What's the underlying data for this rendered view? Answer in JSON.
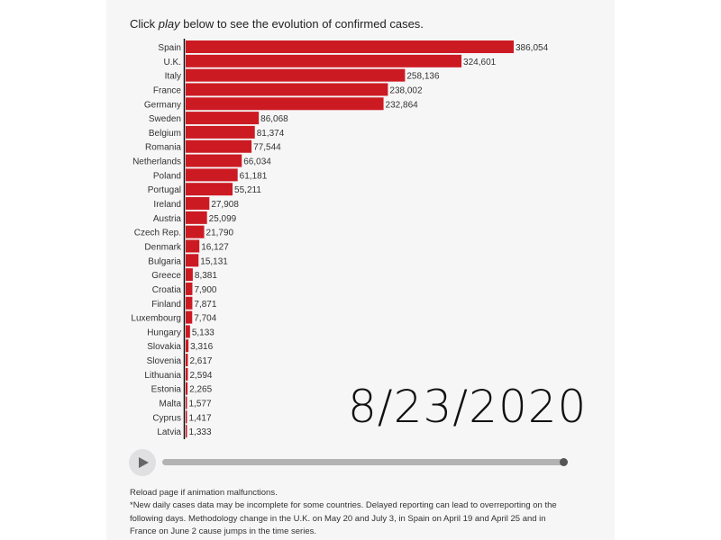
{
  "intro": {
    "prefix": "Click ",
    "emphasis": "play",
    "suffix": " below to see the evolution of confirmed cases."
  },
  "colors": {
    "bar": "#cc1a23",
    "axis": "#111111",
    "label": "#333333",
    "panel": "#f6f6f7"
  },
  "chart_data": {
    "type": "bar",
    "orientation": "horizontal",
    "title": "Click play below to see the evolution of confirmed cases.",
    "date": "8/23/2020",
    "xlim": [
      0,
      386054
    ],
    "categories": [
      "Spain",
      "U.K.",
      "Italy",
      "France",
      "Germany",
      "Sweden",
      "Belgium",
      "Romania",
      "Netherlands",
      "Poland",
      "Portugal",
      "Ireland",
      "Austria",
      "Czech Rep.",
      "Denmark",
      "Bulgaria",
      "Greece",
      "Croatia",
      "Finland",
      "Luxembourg",
      "Hungary",
      "Slovakia",
      "Slovenia",
      "Lithuania",
      "Estonia",
      "Malta",
      "Cyprus",
      "Latvia"
    ],
    "values": [
      386054,
      324601,
      258136,
      238002,
      232864,
      86068,
      81374,
      77544,
      66034,
      61181,
      55211,
      27908,
      25099,
      21790,
      16127,
      15131,
      8381,
      7900,
      7871,
      7704,
      5133,
      3316,
      2617,
      2594,
      2265,
      1577,
      1417,
      1333
    ],
    "value_labels": [
      "386,054",
      "324,601",
      "258,136",
      "238,002",
      "232,864",
      "86,068",
      "81,374",
      "77,544",
      "66,034",
      "61,181",
      "55,211",
      "27,908",
      "25,099",
      "21,790",
      "16,127",
      "15,131",
      "8,381",
      "7,900",
      "7,871",
      "7,704",
      "5,133",
      "3,316",
      "2,617",
      "2,594",
      "2,265",
      "1,577",
      "1,417",
      "1,333"
    ]
  },
  "player": {
    "play_icon": "play-icon",
    "progress": 1.0
  },
  "notes": {
    "line1": "Reload page if animation malfunctions.",
    "line2": "*New daily cases data may be incomplete for some countries. Delayed reporting can lead to overreporting on the following days. Methodology change in the U.K. on May 20 and July 3, in Spain on April 19 and April 25 and in France on June 2 cause jumps in the time series."
  }
}
